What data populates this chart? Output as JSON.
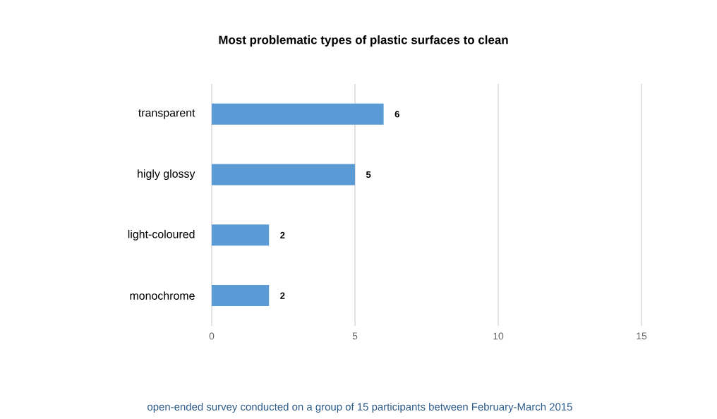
{
  "chart_data": {
    "type": "bar",
    "orientation": "horizontal",
    "title": "Most problematic types of plastic surfaces to clean",
    "categories": [
      "transparent",
      "higly glossy",
      "light-coloured",
      "monochrome"
    ],
    "values": [
      6,
      5,
      2,
      2
    ],
    "color": "#5b9bd5",
    "xlim": [
      0,
      15
    ],
    "xticks": [
      0,
      5,
      10,
      15
    ],
    "grid": "x",
    "data_labels": true,
    "annotations": [
      "open-ended  survey conducted on a group of 15 participants between February-March 2015"
    ]
  }
}
